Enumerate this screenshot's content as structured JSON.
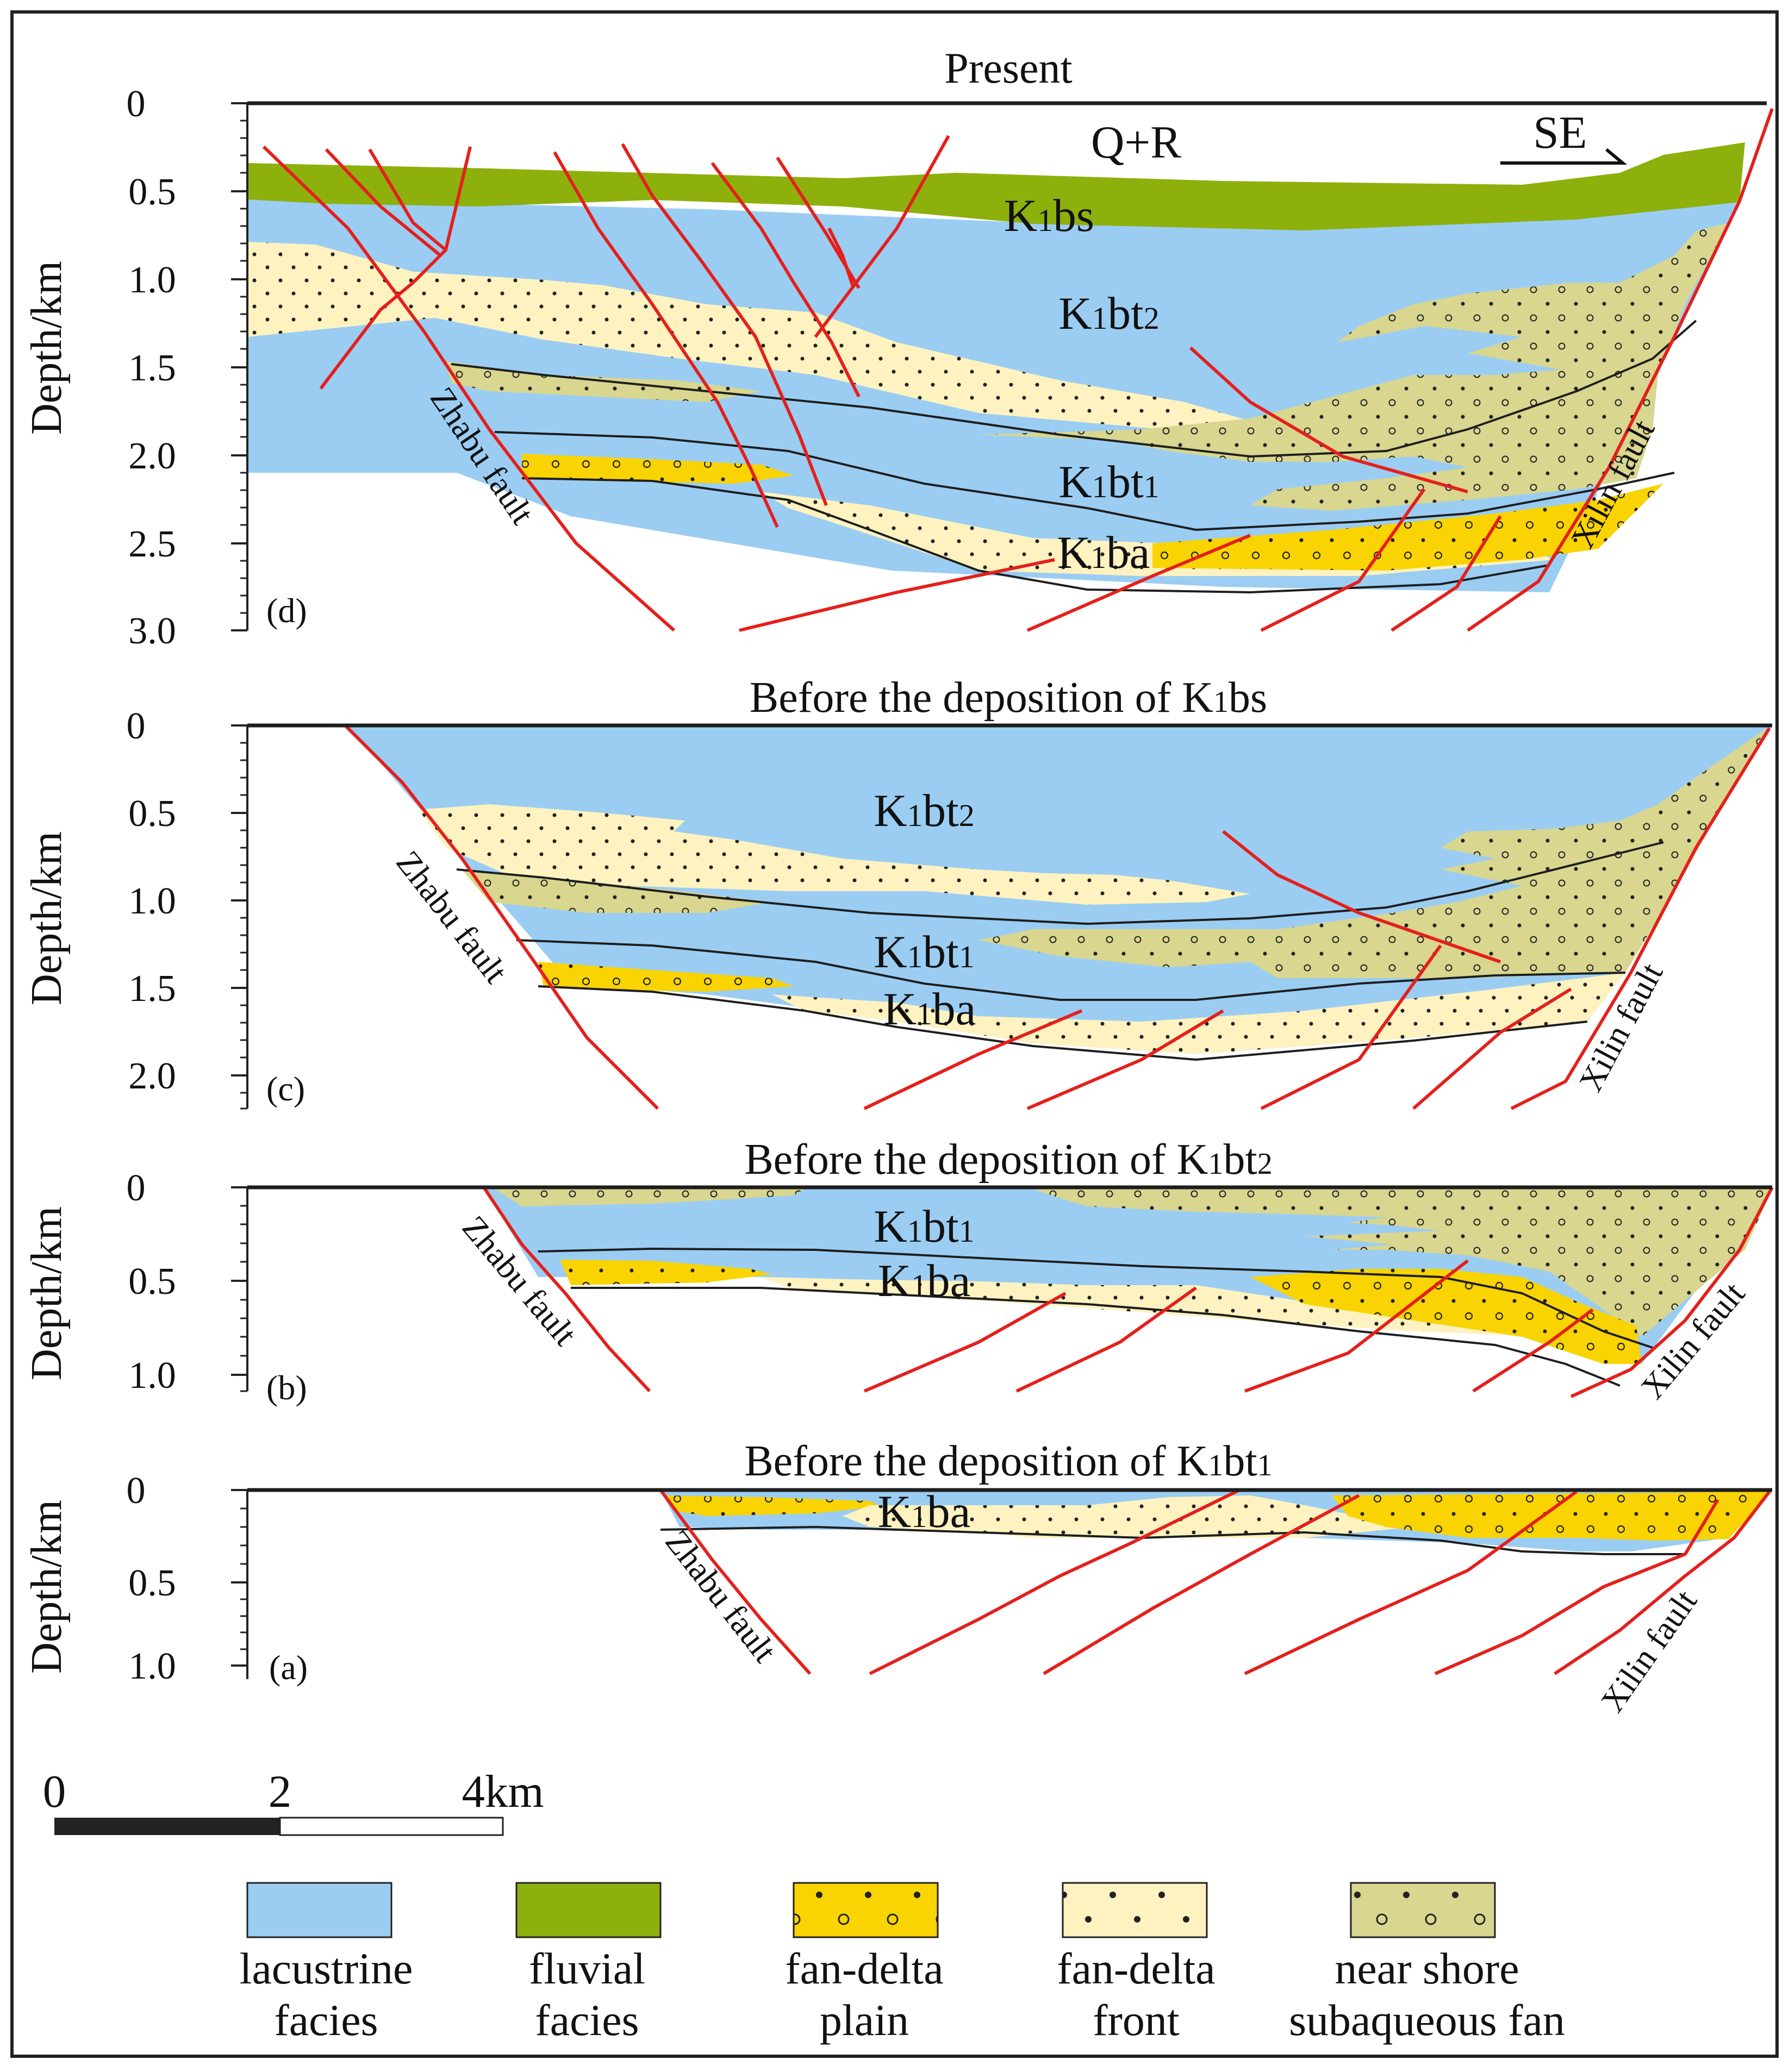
{
  "colors": {
    "lacustrine": "#9bcdf3",
    "fluvial": "#8db00c",
    "fan_delta_plain": "#f9d402",
    "fan_delta_front": "#fdf2c0",
    "near_shore_fan": "#d8d68f",
    "fault_line": "#e4201c",
    "boundary_line": "#1e1e1e"
  },
  "panels": {
    "d": {
      "title": "Present",
      "label": "(d)",
      "axis_label": "Depth/km",
      "ticks": [
        "0",
        "0.5",
        "1.0",
        "1.5",
        "2.0",
        "2.5",
        "3.0"
      ],
      "units": {
        "qr": "Q+R",
        "k1bs": {
          "k": "K",
          "s": "1",
          "r": "bs"
        },
        "k1bt2": {
          "k": "K",
          "s": "1",
          "r": "bt",
          "t": "2"
        },
        "k1bt1": {
          "k": "K",
          "s": "1",
          "r": "bt",
          "t": "1"
        },
        "k1ba": {
          "k": "K",
          "s": "1",
          "r": "ba"
        }
      },
      "direction": "SE",
      "left_fault": "Zhabu fault",
      "right_fault": "Xilin fault"
    },
    "c": {
      "title": {
        "pre": "Before the deposition of",
        "k": "K",
        "s": "1",
        "r": "bs"
      },
      "label": "(c)",
      "axis_label": "Depth/km",
      "ticks": [
        "0",
        "0.5",
        "1.0",
        "1.5",
        "2.0"
      ],
      "units": {
        "k1bt2": {
          "k": "K",
          "s": "1",
          "r": "bt",
          "t": "2"
        },
        "k1bt1": {
          "k": "K",
          "s": "1",
          "r": "bt",
          "t": "1"
        },
        "k1ba": {
          "k": "K",
          "s": "1",
          "r": "ba"
        }
      },
      "left_fault": "Zhabu fault",
      "right_fault": "Xilin fault"
    },
    "b": {
      "title": {
        "pre": "Before the deposition of",
        "k": "K",
        "s": "1",
        "r": "bt",
        "t": "2"
      },
      "label": "(b)",
      "axis_label": "Depth/km",
      "ticks": [
        "0",
        "0.5",
        "1.0"
      ],
      "units": {
        "k1bt1": {
          "k": "K",
          "s": "1",
          "r": "bt",
          "t": "1"
        },
        "k1ba": {
          "k": "K",
          "s": "1",
          "r": "ba"
        }
      },
      "left_fault": "Zhabu fault",
      "right_fault": "Xilin fault"
    },
    "a": {
      "title": {
        "pre": "Before the deposition of",
        "k": "K",
        "s": "1",
        "r": "bt",
        "t": "1"
      },
      "label": "(a)",
      "axis_label": "Depth/km",
      "ticks": [
        "0",
        "0.5",
        "1.0"
      ],
      "units": {
        "k1ba": {
          "k": "K",
          "s": "1",
          "r": "ba"
        }
      },
      "left_fault": "Zhabu fault",
      "right_fault": "Xilin fault"
    }
  },
  "scale_bar": {
    "labels": [
      "0",
      "2",
      "4km"
    ]
  },
  "legend": [
    {
      "line1": "lacustrine",
      "line2": "facies"
    },
    {
      "line1": "fluvial",
      "line2": "facies"
    },
    {
      "line1": "fan-delta",
      "line2": "plain"
    },
    {
      "line1": "fan-delta",
      "line2": "front"
    },
    {
      "line1": "near shore",
      "line2": "subaqueous fan"
    }
  ]
}
